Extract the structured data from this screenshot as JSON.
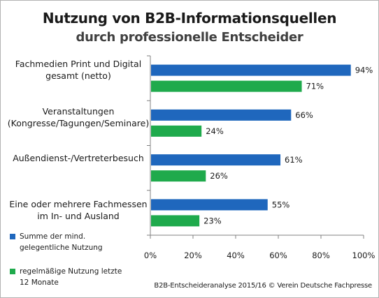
{
  "chart_data": {
    "type": "bar",
    "orientation": "horizontal",
    "title": "Nutzung von B2B-Informationsquellen",
    "subtitle": "durch professionelle Entscheider",
    "categories": [
      [
        "Fachmedien Print und Digital",
        "gesamt (netto)"
      ],
      [
        "Veranstaltungen",
        "(Kongresse/Tagungen/Seminare)"
      ],
      [
        "Außendienst-/Vertreterbesuch"
      ],
      [
        "Eine oder mehrere Fachmessen",
        "im In- und Ausland"
      ]
    ],
    "series": [
      {
        "name": "Summe der mind. gelegentliche Nutzung",
        "color": "#1f67bd",
        "values": [
          94,
          66,
          61,
          55
        ],
        "labels": [
          "94%",
          "66%",
          "61%",
          "55%"
        ]
      },
      {
        "name": "regelmäßige Nutzung letzte 12 Monate",
        "color": "#1faa4c",
        "values": [
          71,
          24,
          26,
          23
        ],
        "labels": [
          "71%",
          "24%",
          "26%",
          "23%"
        ]
      }
    ],
    "xlim": [
      0,
      100
    ],
    "xticks": [
      0,
      20,
      40,
      60,
      80,
      100
    ],
    "xtick_labels": [
      "0%",
      "20%",
      "40%",
      "60%",
      "80%",
      "100%"
    ],
    "grid": false,
    "legend_position": "bottom-left"
  },
  "legend": {
    "item1_line1": "Summe der mind.",
    "item1_line2": "gelegentliche Nutzung",
    "item2_line1": "regelmäßige Nutzung letzte",
    "item2_line2": "12 Monate"
  },
  "footer": "B2B-Entscheideranalyse 2015/16 © Verein Deutsche Fachpresse"
}
